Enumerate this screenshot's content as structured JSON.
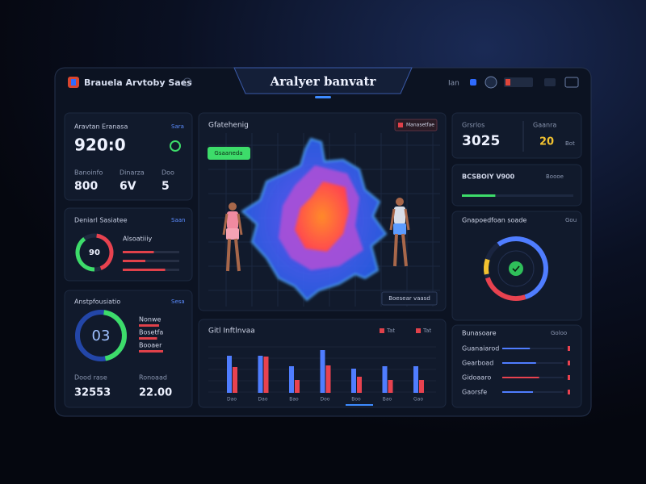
{
  "header": {
    "brand": "Brauela Arvtoby Saes",
    "title": "Aralyer banvatr",
    "nav": [
      "Ian"
    ]
  },
  "summary": {
    "title": "Aravtan Eranasa",
    "link": "Sara",
    "value": "920:0",
    "stats": [
      {
        "label": "Banoinfo",
        "value": "800"
      },
      {
        "label": "Dinarza",
        "value": "6V"
      },
      {
        "label": "Doo",
        "value": "5"
      }
    ]
  },
  "status": {
    "title": "Deniarl Sasiatee",
    "link": "Saan",
    "gauge_label": "90",
    "heading": "Alsoatiiiy",
    "red": 42,
    "green": 40,
    "bars": [
      55,
      40,
      75
    ]
  },
  "analysis": {
    "title": "Anstpfousiatio",
    "link": "Sesa",
    "gauge_label": "03",
    "gauge": 45,
    "rows": [
      {
        "label": "Nonwe",
        "value": 50
      },
      {
        "label": "Bosetfa",
        "value": 45
      },
      {
        "label": "Booaer",
        "value": 60
      }
    ],
    "stats": [
      {
        "label": "Dood rase",
        "value": "32553"
      },
      {
        "label": "Ronoaad",
        "value": "22.00"
      }
    ]
  },
  "map": {
    "title": "Gfatehenig",
    "button_top": "Manasetfae",
    "button_filter": "Gsaaneda",
    "button_bottom": "Boesear vaasd"
  },
  "bar_chart": {
    "title": "Gitl Inftlnvaa",
    "legend": [
      "Tat",
      "Tat"
    ],
    "categories": [
      "Dao",
      "Dao",
      "Bao",
      "Doo",
      "Boo",
      "Bao",
      "Gao"
    ],
    "blue": [
      46,
      46,
      33,
      53,
      30,
      33,
      33
    ],
    "red": [
      32,
      45,
      16,
      34,
      20,
      16,
      16
    ]
  },
  "score": {
    "left_label": "Grsrlos",
    "left_value": "3025",
    "right_label": "Gaanra",
    "right_value": "20",
    "right_unit": "Bot"
  },
  "progress": {
    "title": "BCSBOIY V900",
    "link": "Boooe",
    "value": 30
  },
  "ring": {
    "title": "Gnapoedfoan soade",
    "link": "Gou",
    "blue": 55,
    "red": 25,
    "yellow": 8
  },
  "list": {
    "title": "Bunasoare",
    "link": "Goloo",
    "rows": [
      {
        "label": "Guanaiarod",
        "value": 45
      },
      {
        "label": "Gearboad",
        "value": 55
      },
      {
        "label": "Gidoaaro",
        "value": 60
      },
      {
        "label": "Gaorsfe",
        "value": 50
      }
    ]
  }
}
